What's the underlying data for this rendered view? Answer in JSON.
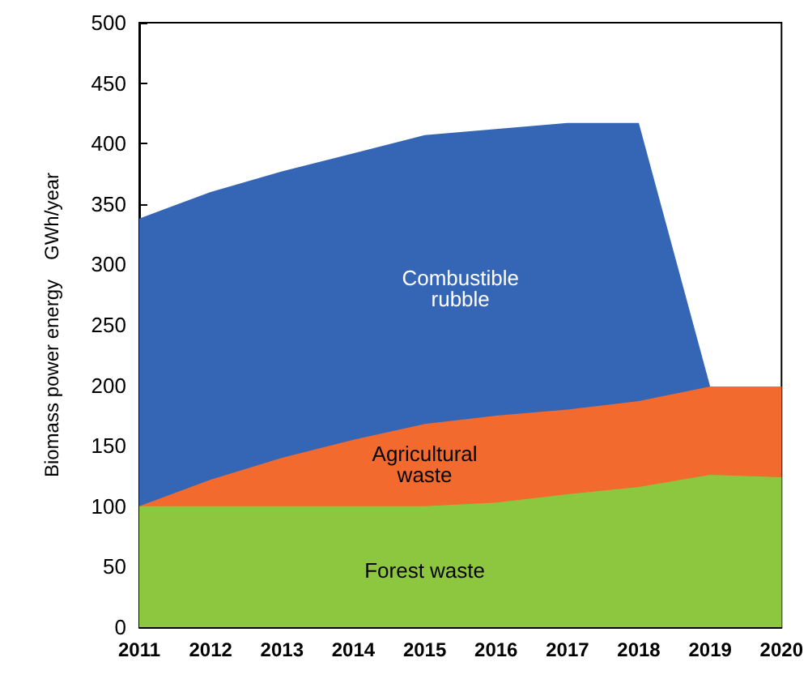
{
  "chart_data": {
    "type": "area",
    "stacked": true,
    "ylabel": "Biomass power energy　GWh/year",
    "x": [
      2011,
      2012,
      2013,
      2014,
      2015,
      2016,
      2017,
      2018,
      2019,
      2020
    ],
    "xlim": [
      2011,
      2020
    ],
    "xticks": [
      2011,
      2012,
      2013,
      2014,
      2015,
      2016,
      2017,
      2018,
      2019,
      2020
    ],
    "ylim": [
      0,
      500
    ],
    "yticks": [
      0,
      50,
      100,
      150,
      200,
      250,
      300,
      350,
      400,
      450,
      500
    ],
    "grid": false,
    "legend": false,
    "series": [
      {
        "name": "Forest waste",
        "color": "#8dc63f",
        "values": [
          100,
          100,
          100,
          100,
          100,
          103,
          110,
          116,
          126,
          124
        ]
      },
      {
        "name": "Agricultural\nwaste",
        "color": "#f26a2e",
        "values": [
          0,
          22,
          40,
          55,
          68,
          72,
          70,
          71,
          73,
          75
        ]
      },
      {
        "name": "Combustible\nrubble",
        "color": "#3566b5",
        "values": [
          238,
          238,
          237,
          237,
          239,
          237,
          237,
          230,
          0,
          0
        ]
      }
    ]
  }
}
